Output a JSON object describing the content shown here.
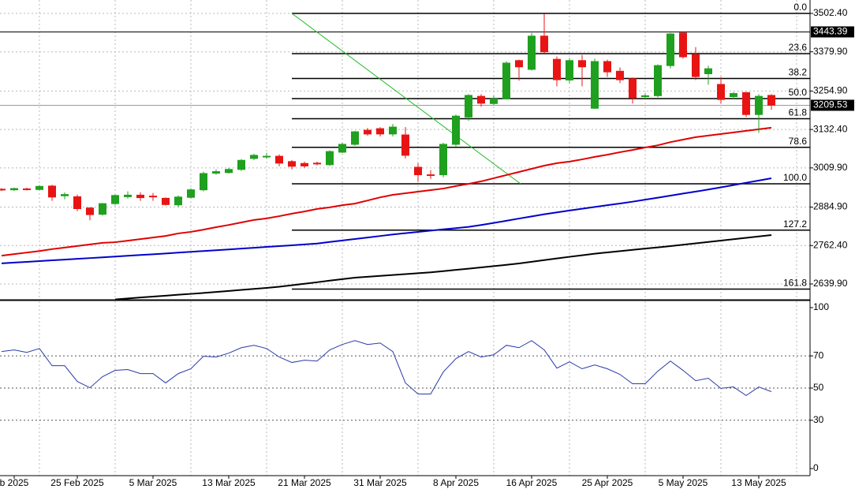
{
  "chart_data": [
    {
      "type": "candlestick",
      "categories": [
        null,
        "b 2025",
        null,
        null,
        null,
        null,
        "25 Feb 2025",
        null,
        null,
        null,
        null,
        null,
        "5 Mar 2025",
        null,
        null,
        null,
        null,
        null,
        "13 Mar 2025",
        null,
        null,
        null,
        null,
        null,
        "21 Mar 2025",
        null,
        null,
        null,
        null,
        null,
        "31 Mar 2025",
        null,
        null,
        null,
        null,
        null,
        "8 Apr 2025",
        null,
        null,
        null,
        null,
        null,
        "16 Apr 2025",
        null,
        null,
        null,
        null,
        null,
        "25 Apr 2025",
        null,
        null,
        null,
        null,
        null,
        "5 May 2025",
        null,
        null,
        null,
        null,
        null,
        "13 May 2025",
        null
      ],
      "ohlc": {
        "open": [
          2942,
          2940,
          2943,
          2941,
          2952,
          2921,
          2918,
          2882,
          2862,
          2896,
          2918,
          2923,
          2920,
          2913,
          2892,
          2916,
          2940,
          2993,
          2995,
          3005,
          3040,
          3046,
          3047,
          3030,
          3024,
          3025,
          3020,
          3060,
          3085,
          3130,
          3135,
          3118,
          3115,
          3012,
          2988,
          2988,
          3085,
          3172,
          3238,
          3215,
          3230,
          3352,
          3324,
          3430,
          3356,
          3290,
          3352,
          3200,
          3349,
          3318,
          3294,
          3237,
          3240,
          3336,
          3440,
          3371,
          3310,
          3276,
          3237,
          3250,
          3180,
          3241
        ],
        "high": [
          2945,
          2947,
          2947,
          2955,
          2956,
          2932,
          2925,
          2885,
          2898,
          2925,
          2935,
          2932,
          2930,
          2916,
          2922,
          2945,
          2998,
          3005,
          3010,
          3038,
          3055,
          3058,
          3053,
          3035,
          3030,
          3030,
          3066,
          3090,
          3128,
          3137,
          3140,
          3150,
          3140,
          3025,
          3003,
          3090,
          3180,
          3245,
          3245,
          3240,
          3350,
          3355,
          3440,
          3500,
          3365,
          3360,
          3370,
          3358,
          3355,
          3330,
          3298,
          3248,
          3340,
          3440,
          3445,
          3395,
          3335,
          3300,
          3252,
          3252,
          3245,
          3245
        ],
        "low": [
          2936,
          2937,
          2938,
          2938,
          2905,
          2910,
          2872,
          2843,
          2858,
          2892,
          2912,
          2905,
          2905,
          2890,
          2885,
          2912,
          2935,
          2988,
          2992,
          3000,
          3035,
          3040,
          3015,
          3005,
          3010,
          3018,
          3016,
          3057,
          3080,
          3112,
          3110,
          3110,
          3040,
          2967,
          2975,
          2980,
          3078,
          3160,
          3205,
          3210,
          3228,
          3288,
          3320,
          3375,
          3270,
          3280,
          3270,
          3198,
          3300,
          3280,
          3215,
          3230,
          3235,
          3327,
          3358,
          3290,
          3275,
          3215,
          3230,
          3172,
          3122,
          3195
        ],
        "close": [
          2940,
          2944,
          2942,
          2951,
          2917,
          2925,
          2880,
          2861,
          2896,
          2922,
          2923,
          2915,
          2918,
          2893,
          2917,
          2940,
          2992,
          2998,
          3005,
          3034,
          3050,
          3047,
          3025,
          3015,
          3016,
          3024,
          3062,
          3085,
          3125,
          3118,
          3118,
          3140,
          3050,
          2988,
          2987,
          3085,
          3175,
          3241,
          3216,
          3230,
          3344,
          3332,
          3430,
          3380,
          3291,
          3352,
          3332,
          3349,
          3316,
          3291,
          3233,
          3240,
          3336,
          3437,
          3364,
          3301,
          3326,
          3228,
          3247,
          3180,
          3238,
          3209.53
        ]
      },
      "up_color": "#1fa01f",
      "down_color": "#e81414",
      "lines": [
        {
          "color": "#e00000",
          "values": [
            2730,
            2735,
            2740,
            2745,
            2751,
            2756,
            2761,
            2766,
            2771,
            2773,
            2778,
            2783,
            2788,
            2793,
            2801,
            2806,
            2813,
            2821,
            2828,
            2836,
            2844,
            2849,
            2856,
            2864,
            2871,
            2879,
            2884,
            2891,
            2896,
            2906,
            2916,
            2924,
            2929,
            2934,
            2939,
            2944,
            2952,
            2959,
            2967,
            2977,
            2987,
            2997,
            3007,
            3017,
            3025,
            3030,
            3037,
            3045,
            3052,
            3060,
            3067,
            3075,
            3082,
            3092,
            3100,
            3108,
            3113,
            3118,
            3123,
            3128,
            3133,
            3138
          ]
        },
        {
          "color": "#0000cc",
          "values": [
            2705.6,
            2708,
            2710.3,
            2712.8,
            2715.3,
            2717.6,
            2720,
            2722.4,
            2724.9,
            2727.4,
            2729.7,
            2732.2,
            2734.5,
            2737,
            2739.7,
            2742.3,
            2745,
            2747.5,
            2750,
            2752.8,
            2755.3,
            2758.1,
            2760.6,
            2763.1,
            2765.9,
            2768.7,
            2773.7,
            2778.5,
            2783.2,
            2788,
            2792.8,
            2797.8,
            2801.9,
            2805.9,
            2809.9,
            2813.9,
            2817.9,
            2822,
            2827.8,
            2834.5,
            2841.3,
            2848.4,
            2855.2,
            2862,
            2868.2,
            2874,
            2879.6,
            2885.4,
            2890.9,
            2896.4,
            2902.2,
            2908.7,
            2915,
            2921.6,
            2928.1,
            2934.4,
            2940.9,
            2947.9,
            2955.2,
            2962.5,
            2969.6,
            2976.9
          ]
        },
        {
          "color": "#000000",
          "values": [
            null,
            null,
            null,
            null,
            null,
            null,
            null,
            null,
            null,
            2590.7,
            2593.7,
            2596.7,
            2599.6,
            2602.5,
            2605.5,
            2608.3,
            2611.2,
            2614.5,
            2617.7,
            2621,
            2624.3,
            2627.3,
            2631.1,
            2635.9,
            2640.6,
            2645.4,
            2650.5,
            2655.2,
            2660,
            2662.8,
            2665.8,
            2668.6,
            2671.4,
            2674.1,
            2676.9,
            2680.7,
            2684.7,
            2688.7,
            2692.7,
            2696.8,
            2700.8,
            2705.3,
            2710.6,
            2715.9,
            2721.2,
            2726.5,
            2731.4,
            2736.5,
            2740.5,
            2744.5,
            2748.6,
            2752.6,
            2756.6,
            2760.6,
            2764.9,
            2769.4,
            2773.7,
            2778.2,
            2782.5,
            2787,
            2791.3,
            2795.8
          ]
        }
      ],
      "ylim": [
        2589.6,
        3545.1
      ],
      "yticks": [
        {
          "value": 3502.4,
          "label": "3502.40"
        },
        {
          "value": 3379.9,
          "label": "3379.90"
        },
        {
          "value": 3254.9,
          "label": "3254.90"
        },
        {
          "value": 3132.4,
          "label": "3132.40"
        },
        {
          "value": 3009.9,
          "label": "3009.90"
        },
        {
          "value": 2884.9,
          "label": "2884.90"
        },
        {
          "value": 2762.4,
          "label": "2762.40"
        },
        {
          "value": 2639.9,
          "label": "2639.90"
        }
      ],
      "grid": true,
      "price_lines": [
        {
          "value": 3443.39,
          "color": "#000000"
        },
        {
          "value": 3209.53,
          "color": "#9a9a9a"
        }
      ],
      "fib_levels": [
        {
          "value": 3502.4,
          "label": "0.0"
        },
        {
          "value": 3374.2,
          "label": "23.6"
        },
        {
          "value": 3294.9,
          "label": "38.2"
        },
        {
          "value": 3230.9,
          "label": "50.0"
        },
        {
          "value": 3166.8,
          "label": "61.8"
        },
        {
          "value": 3075.5,
          "label": "78.6"
        },
        {
          "value": 2959.3,
          "label": "100.0"
        },
        {
          "value": 2811.6,
          "label": "127.2"
        },
        {
          "value": 2623.7,
          "label": "161.8"
        }
      ],
      "fib_color": "#22bb22"
    },
    {
      "type": "line",
      "color": "#2a3aa8",
      "values": [
        72.7,
        73.7,
        72.2,
        74.6,
        63.9,
        63.9,
        54.1,
        50.2,
        57.1,
        61,
        61.5,
        59,
        59,
        53.2,
        59,
        62,
        69.8,
        69.3,
        71.7,
        75.1,
        76.6,
        74.6,
        69.3,
        65.9,
        67.3,
        66.8,
        73.7,
        77.1,
        79.5,
        77.1,
        78,
        72.7,
        53.2,
        46.3,
        46.3,
        60,
        68.3,
        72.7,
        69.3,
        70.7,
        76.6,
        75.1,
        79.5,
        73.7,
        62.4,
        66.3,
        62,
        64.4,
        62,
        58.5,
        52.7,
        52.7,
        60.5,
        66.8,
        61,
        54.6,
        56.1,
        49.8,
        50.7,
        45.4,
        50.7,
        47.8
      ],
      "ylim": [
        -4.4,
        103.9
      ],
      "yticks": [
        0,
        30,
        50,
        70,
        100
      ],
      "levels": [
        30,
        50,
        70
      ]
    }
  ]
}
